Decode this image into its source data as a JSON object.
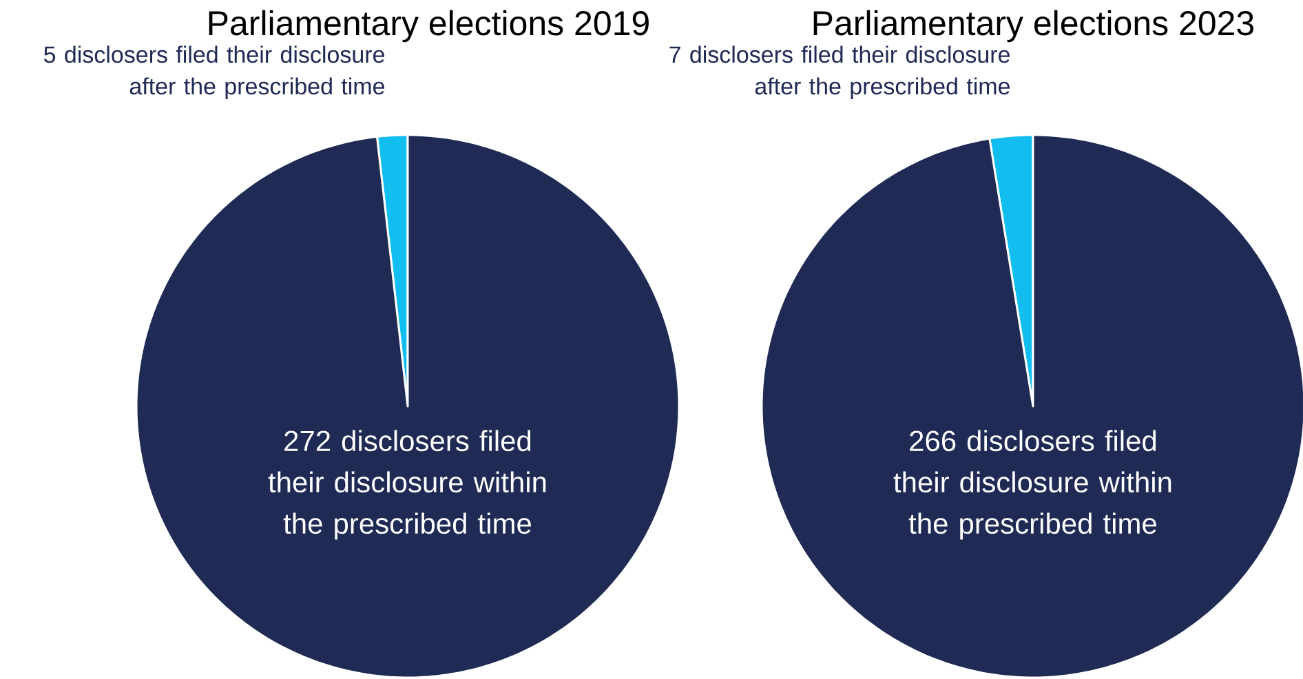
{
  "chart_data": [
    {
      "type": "pie",
      "title": "Parliamentary elections 2019",
      "categories": [
        "5 disclosers filed their disclosure after the prescribed time",
        "272 disclosers filed their disclosure within the prescribed time"
      ],
      "values": [
        5,
        272
      ],
      "colors": [
        "#12bdf0",
        "#1f2a55"
      ]
    },
    {
      "type": "pie",
      "title": "Parliamentary elections 2023",
      "categories": [
        "7 disclosers filed their disclosure after the prescribed time",
        "266 disclosers filed their disclosure within the prescribed time"
      ],
      "values": [
        7,
        266
      ],
      "colors": [
        "#12bdf0",
        "#1f2a55"
      ]
    }
  ]
}
